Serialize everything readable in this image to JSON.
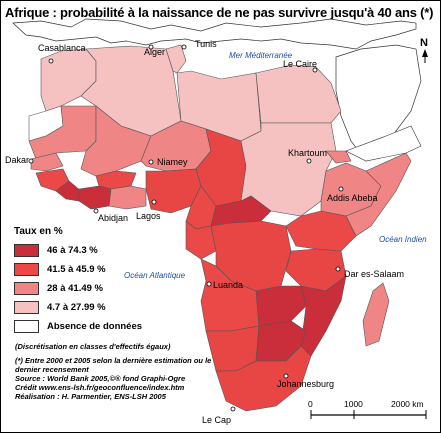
{
  "title": "Afrique : probabilité à la naissance de ne pas survivre jusqu'à 40 ans (*)",
  "colors": {
    "class1": "#c92e3a",
    "class2": "#eb4848",
    "class3": "#f08585",
    "class4": "#f6c1c1",
    "no_data": "#ffffff",
    "sea_text": "#1f4fa8"
  },
  "cities": {
    "casablanca": "Casablanca",
    "alger": "Alger",
    "tunis": "Tunis",
    "le_caire": "Le Caire",
    "dakar": "Dakar",
    "niamey": "Niamey",
    "khartoum": "Khartoum",
    "addis_abeba": "Addis Abeba",
    "abidjan": "Abidjan",
    "lagos": "Lagos",
    "dar_es_salaam": "Dar es-Salaam",
    "luanda": "Luanda",
    "johannesburg": "Johannesburg",
    "le_cap": "Le Cap"
  },
  "seas": {
    "mediterranee": "Mer Méditerranée",
    "atlantique": "Océan Atlantique",
    "indien": "Océan Indien"
  },
  "north_label": "N",
  "legend": {
    "title": "Taux en %",
    "items": [
      {
        "label": "46 à 74.3 %",
        "color": "#c92e3a"
      },
      {
        "label": "41.5 à 45.9 %",
        "color": "#eb4848"
      },
      {
        "label": "28 à 41.49 %",
        "color": "#f08585"
      },
      {
        "label": "4.7 à 27.99 %",
        "color": "#f6c1c1"
      },
      {
        "label": "Absence de données",
        "color": "#ffffff"
      }
    ]
  },
  "notes": {
    "method": "(Discrétisation en classes d'effectifs égaux)",
    "period": "(*) Entre 2000 et 2005 selon la dernière estimation ou le dernier recensement",
    "source": "Source : World Bank 2005,©® fond Graphi-Ogre",
    "credit": "Crédit www.ens-lsh.fr/geoconfluence/index.htm",
    "author": "Réalisation : H. Parmentier, ENS-LSH 2005"
  },
  "scale": {
    "zero": "0",
    "mid": "1000",
    "end": "2000 km"
  }
}
